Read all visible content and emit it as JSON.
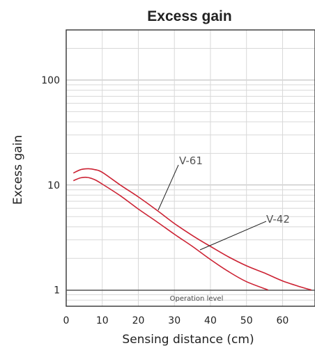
{
  "chart_data": {
    "type": "line",
    "title": "Excess gain",
    "xlabel": "Sensing distance (cm)",
    "ylabel": "Excess gain",
    "xlim": [
      0,
      69
    ],
    "ylim": [
      0.7,
      300
    ],
    "y_scale": "log",
    "grid": true,
    "x_ticks": [
      0,
      10,
      20,
      30,
      40,
      50,
      60
    ],
    "y_ticks": [
      1,
      10,
      100
    ],
    "annotation": "Operation level",
    "series": [
      {
        "name": "V-61",
        "color": "#cc2233",
        "x": [
          2,
          4,
          6,
          8,
          10,
          15,
          20,
          25,
          30,
          35,
          40,
          45,
          50,
          55,
          60,
          65,
          68
        ],
        "y": [
          13.0,
          14.0,
          14.3,
          14.0,
          13.2,
          10.0,
          7.7,
          5.8,
          4.3,
          3.3,
          2.6,
          2.07,
          1.7,
          1.45,
          1.22,
          1.07,
          1.0
        ]
      },
      {
        "name": "V-42",
        "color": "#cc2233",
        "x": [
          2,
          4,
          6,
          8,
          10,
          15,
          20,
          25,
          30,
          35,
          40,
          45,
          50,
          56
        ],
        "y": [
          11.0,
          11.7,
          11.8,
          11.2,
          10.2,
          7.9,
          5.9,
          4.5,
          3.4,
          2.6,
          1.95,
          1.5,
          1.2,
          1.0
        ]
      }
    ]
  }
}
